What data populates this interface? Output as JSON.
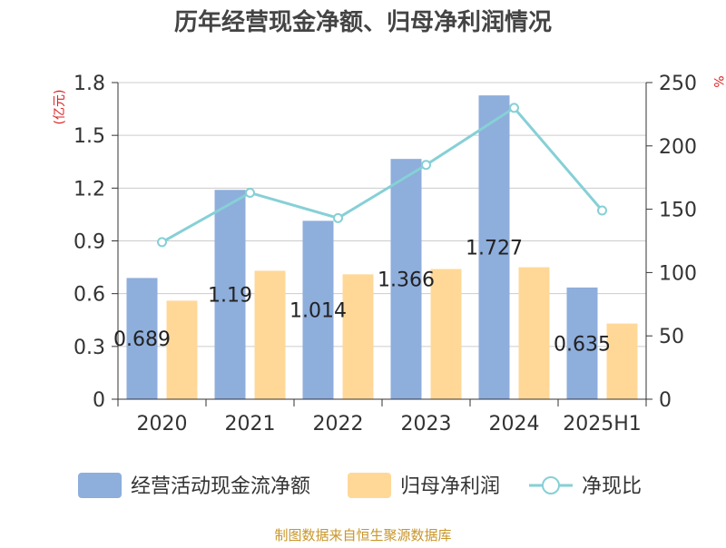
{
  "chart_data": {
    "type": "bar",
    "title": "历年经营现金净额、归母净利润情况",
    "categories": [
      "2020",
      "2021",
      "2022",
      "2023",
      "2024",
      "2025H1"
    ],
    "left_unit": "(亿元)",
    "right_unit": "%",
    "ylim_left": [
      0,
      1.8
    ],
    "yticks_left": [
      "0",
      "0.3",
      "0.6",
      "0.9",
      "1.2",
      "1.5",
      "1.8"
    ],
    "ylim_right": [
      0,
      250
    ],
    "yticks_right": [
      "0",
      "50",
      "100",
      "150",
      "200",
      "250"
    ],
    "grid": true,
    "legend_position": "bottom",
    "series": [
      {
        "name": "经营活动现金流净额",
        "kind": "bar",
        "axis": "left",
        "color": "#8eaedc",
        "values": [
          0.689,
          1.19,
          1.014,
          1.366,
          1.727,
          0.635
        ],
        "labels": [
          "0.689",
          "1.19",
          "1.014",
          "1.366",
          "1.727",
          "0.635"
        ]
      },
      {
        "name": "归母净利润",
        "kind": "bar",
        "axis": "left",
        "color": "#ffd898",
        "values": [
          0.56,
          0.73,
          0.71,
          0.74,
          0.75,
          0.43
        ]
      },
      {
        "name": "净现比",
        "kind": "line",
        "axis": "right",
        "color": "#86d0d6",
        "values": [
          124,
          163,
          143,
          185,
          230,
          149
        ]
      }
    ]
  },
  "footer": {
    "source": "制图数据来自恒生聚源数据库"
  }
}
